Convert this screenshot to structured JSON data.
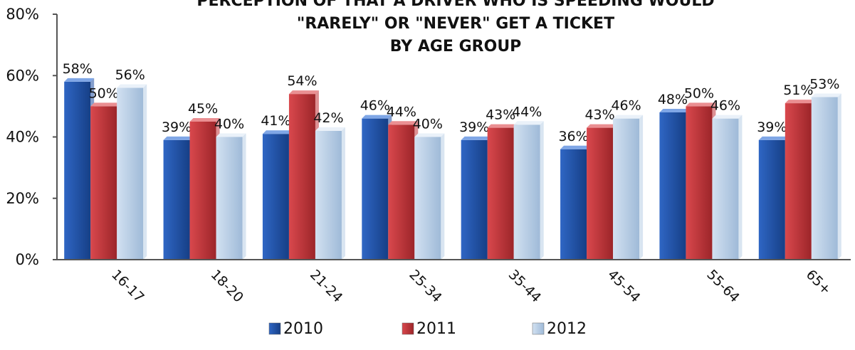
{
  "chart_data": {
    "type": "bar",
    "title_lines": [
      "PERCEPTION OF THAT A DRIVER WHO IS SPEEDING WOULD",
      "\"RARELY\" OR \"NEVER\" GET A TICKET",
      "BY AGE GROUP"
    ],
    "categories": [
      "16-17",
      "18-20",
      "21-24",
      "25-34",
      "35-44",
      "45-54",
      "55-64",
      "65+"
    ],
    "series": [
      {
        "name": "2010",
        "values": [
          58,
          39,
          41,
          46,
          39,
          36,
          48,
          39
        ],
        "color": "#1f4fa3"
      },
      {
        "name": "2011",
        "values": [
          50,
          45,
          54,
          44,
          43,
          43,
          50,
          51
        ],
        "color": "#c1353a"
      },
      {
        "name": "2012",
        "values": [
          56,
          40,
          42,
          40,
          44,
          46,
          46,
          53
        ],
        "color": "#b9cfe6"
      }
    ],
    "value_suffix": "%",
    "ylim": [
      0,
      80
    ],
    "yticks": [
      0,
      20,
      40,
      60,
      80
    ],
    "ytick_labels": [
      "0%",
      "20%",
      "40%",
      "60%",
      "80%"
    ],
    "xlabel": "",
    "ylabel": "",
    "legend_position": "bottom",
    "grid": false
  }
}
